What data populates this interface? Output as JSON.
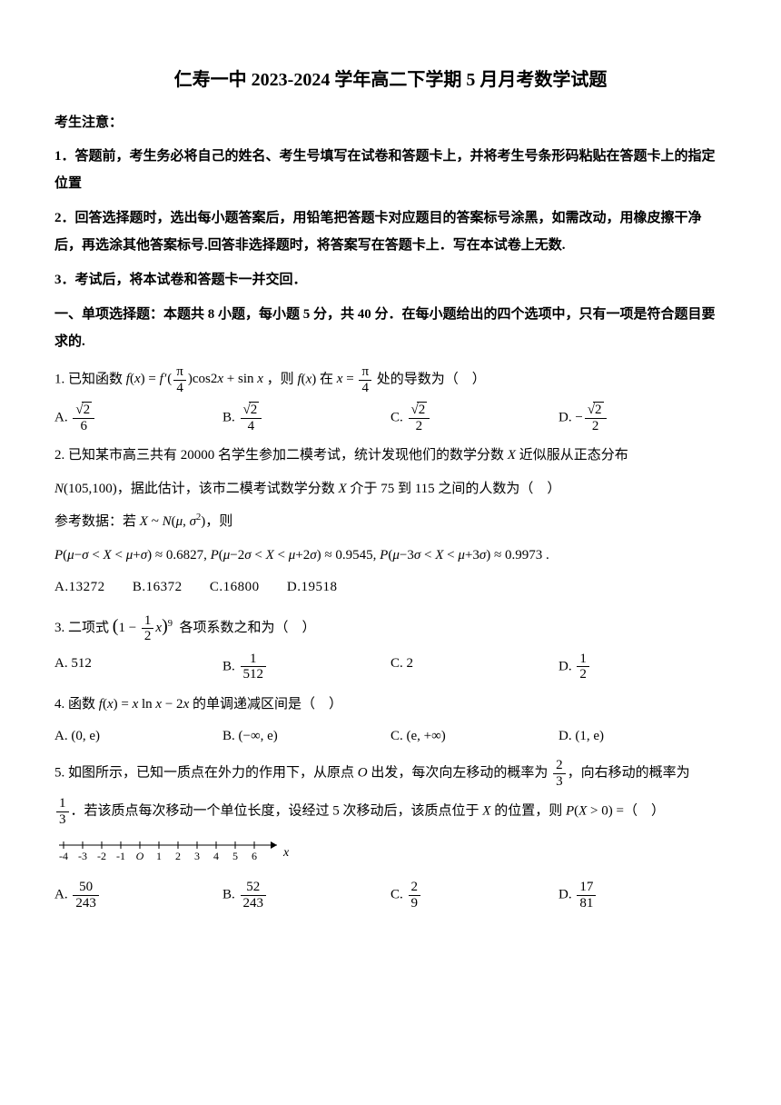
{
  "title": "仁寿一中 2023-2024 学年高二下学期 5 月月考数学试题",
  "notice_heading": "考生注意：",
  "notices": [
    "1．答题前，考生务必将自己的姓名、考生号填写在试卷和答题卡上，并将考生号条形码粘贴在答题卡上的指定位置",
    "2．回答选择题时，选出每小题答案后，用铅笔把答题卡对应题目的答案标号涂黑，如需改动，用橡皮擦干净后，再选涂其他答案标号.回答非选择题时，将答案写在答题卡上．写在本试卷上无数.",
    "3．考试后，将本试卷和答题卡一并交回．"
  ],
  "section_heading": "一、单项选择题：本题共 8 小题，每小题 5 分，共 40 分．在每小题给出的四个选项中，只有一项是符合题目要求的.",
  "q1": {
    "prefix": "1. 已知函数",
    "suffix": "处的导数为（ ）",
    "mid1": "，则",
    "mid2": "在",
    "options": {
      "A": "A.",
      "B": "B.",
      "C": "C.",
      "D": "D."
    }
  },
  "q2": {
    "line1_pre": "2. 已知某市高三共有 20000 名学生参加二模考试，统计发现他们的数学分数 ",
    "line1_post": " 近似服从正态分布",
    "line2_pre": "，据此估计，该市二模考试数学分数 ",
    "line2_post": " 介于 75 到 115 之间的人数为（ ）",
    "ref_pre": "参考数据：若 ",
    "ref_post": "，则",
    "probs": "P(μ−σ < X < μ+σ) ≈ 0.6827, P(μ−2σ < X < μ+2σ) ≈ 0.9545, P(μ−3σ < X < μ+3σ) ≈ 0.9973 .",
    "options": {
      "A": "A.13272",
      "B": "B.16372",
      "C": "C.16800",
      "D": "D.19518"
    }
  },
  "q3": {
    "prefix": "3. 二项式",
    "suffix": "各项系数之和为（ ）",
    "options": {
      "A": "A. 512",
      "B": "B.",
      "C": "C. 2",
      "D": "D."
    }
  },
  "q4": {
    "text": "4. 函数 f(x) = x ln x − 2x 的单调递减区间是（ ）",
    "options": {
      "A": "A. (0, e)",
      "B": "B. (−∞, e)",
      "C": "C. (e, +∞)",
      "D": "D. (1, e)"
    }
  },
  "q5": {
    "line1_pre": "5. 如图所示，已知一质点在外力的作用下，从原点 ",
    "line1_mid": " 出发，每次向左移动的概率为 ",
    "line1_post": "，向右移动的概率为",
    "line2_pre": "．若该质点每次移动一个单位长度，设经过 5 次移动后，该质点位于 ",
    "line2_mid": " 的位置，则 ",
    "line2_post": " =（ ）",
    "ticks": [
      "-4",
      "-3",
      "-2",
      "-1",
      "O",
      "1",
      "2",
      "3",
      "4",
      "5",
      "6"
    ],
    "axis_var": "x",
    "options": {
      "A": "A.",
      "B": "B.",
      "C": "C.",
      "D": "D."
    }
  }
}
